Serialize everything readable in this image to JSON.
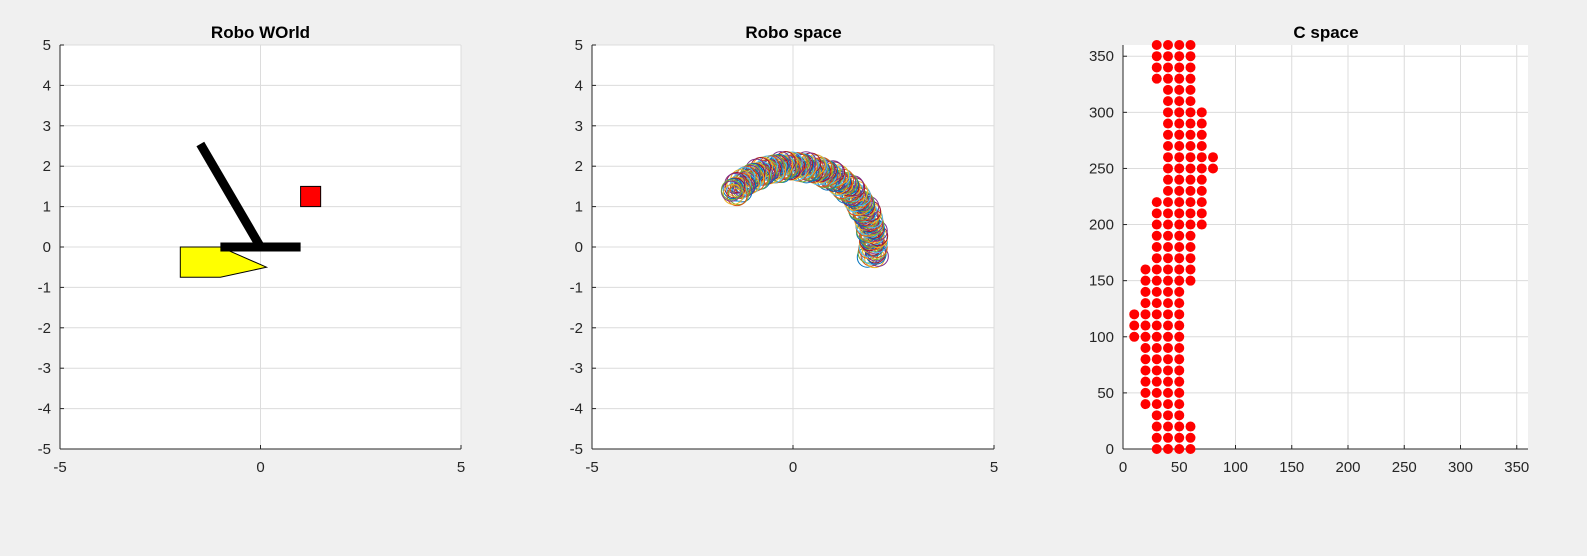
{
  "colors": {
    "figure_bg": "#f0f0f0",
    "axes_bg": "#ffffff",
    "grid": "#dcdcdc",
    "axis": "#262626",
    "link": "#000000",
    "obstacle_poly": "#ffff00",
    "obstacle_box": "#ff0000",
    "cspace_marker": "#ff0000"
  },
  "chart_data": [
    {
      "type": "scatter",
      "title": "Robo WOrld",
      "xlim": [
        -5,
        5
      ],
      "ylim": [
        -5,
        5
      ],
      "xticks": [
        "-5",
        "0",
        "5"
      ],
      "yticks": [
        "5",
        "4",
        "3",
        "2",
        "1",
        "0",
        "-1",
        "-2",
        "-3",
        "-4",
        "-5"
      ],
      "grid": true,
      "shapes": {
        "base_link": {
          "from": [
            -1,
            0
          ],
          "to": [
            1,
            0
          ],
          "color": "#000000"
        },
        "arm_link": {
          "from": [
            0,
            0
          ],
          "to": [
            -1.5,
            2.55
          ],
          "color": "#000000"
        },
        "obstacle_polygon": {
          "points": [
            [
              -2,
              0
            ],
            [
              -1,
              0
            ],
            [
              0.15,
              -0.5
            ],
            [
              -1,
              -0.75
            ],
            [
              -2,
              -0.75
            ]
          ],
          "color": "#ffff00"
        },
        "obstacle_square": {
          "x": [
            1,
            1.5
          ],
          "y": [
            1,
            1.5
          ],
          "color": "#ff0000"
        }
      }
    },
    {
      "type": "scatter",
      "title": "Robo space",
      "xlim": [
        -5,
        5
      ],
      "ylim": [
        -5,
        5
      ],
      "xticks": [
        "-5",
        "0",
        "5"
      ],
      "yticks": [
        "5",
        "4",
        "3",
        "2",
        "1",
        "0",
        "-1",
        "-2",
        "-3",
        "-4",
        "-5"
      ],
      "grid": true,
      "marker": "open-circle",
      "arc": {
        "center": [
          0,
          0
        ],
        "radius": 2.0,
        "from_deg": -7,
        "to_deg": 140
      },
      "marker_colors": [
        "#0072bd",
        "#d95319",
        "#edb120",
        "#7e2f8e",
        "#77ac30",
        "#4dbeee",
        "#a2142f"
      ]
    },
    {
      "type": "scatter",
      "title": "C space",
      "xlim": [
        0,
        360
      ],
      "ylim": [
        0,
        360
      ],
      "xticks": [
        "0",
        "50",
        "100",
        "150",
        "200",
        "250",
        "300",
        "350"
      ],
      "yticks": [
        "350",
        "300",
        "250",
        "200",
        "150",
        "100",
        "50",
        "0"
      ],
      "grid": true,
      "marker": "filled-circle",
      "points_by_x": [
        {
          "x": 10,
          "y": [
            100,
            110,
            120
          ]
        },
        {
          "x": 20,
          "y": [
            40,
            50,
            60,
            70,
            80,
            90,
            100,
            110,
            120,
            130,
            140,
            150,
            160
          ]
        },
        {
          "x": 30,
          "y": [
            0,
            10,
            20,
            30,
            40,
            50,
            60,
            70,
            80,
            90,
            100,
            110,
            120,
            130,
            140,
            150,
            160,
            170,
            180,
            190,
            200,
            210,
            220,
            330,
            340,
            350,
            360
          ]
        },
        {
          "x": 40,
          "y": [
            0,
            10,
            20,
            30,
            40,
            50,
            60,
            70,
            80,
            90,
            100,
            110,
            120,
            130,
            140,
            150,
            160,
            170,
            180,
            190,
            200,
            210,
            220,
            230,
            240,
            250,
            260,
            270,
            280,
            290,
            300,
            310,
            320,
            330,
            340,
            350,
            360
          ]
        },
        {
          "x": 50,
          "y": [
            0,
            10,
            20,
            30,
            40,
            50,
            60,
            70,
            80,
            90,
            100,
            110,
            120,
            130,
            140,
            150,
            160,
            170,
            180,
            190,
            200,
            210,
            220,
            230,
            240,
            250,
            260,
            270,
            280,
            290,
            300,
            310,
            320,
            330,
            340,
            350,
            360
          ]
        },
        {
          "x": 60,
          "y": [
            0,
            10,
            20,
            150,
            160,
            170,
            180,
            190,
            200,
            210,
            220,
            230,
            240,
            250,
            260,
            270,
            280,
            290,
            300,
            310,
            320,
            330,
            340,
            350,
            360
          ]
        },
        {
          "x": 70,
          "y": [
            200,
            210,
            220,
            230,
            240,
            250,
            260,
            270,
            280,
            290,
            300
          ]
        },
        {
          "x": 80,
          "y": [
            250,
            260
          ]
        }
      ]
    }
  ]
}
